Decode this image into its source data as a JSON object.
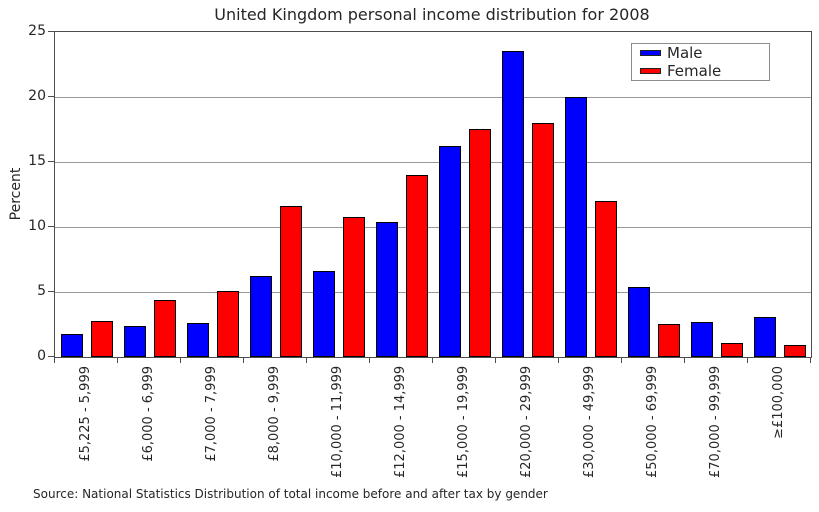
{
  "chart_data": {
    "type": "bar",
    "title": "United Kingdom personal income distribution for 2008",
    "ylabel": "Percent",
    "xlabel": "",
    "ylim": [
      0,
      25
    ],
    "yticks": [
      0,
      5,
      10,
      15,
      20,
      25
    ],
    "grid": "horizontal-only",
    "legend_position": "top-right-inside",
    "source_note": "Source: National Statistics Distribution of total income before and after tax by gender",
    "categories": [
      "£5,225 - 5,999",
      "£6,000 - 6,999",
      "£7,000 - 7,999",
      "£8,000 - 9,999",
      "£10,000 - 11,999",
      "£12,000 - 14,999",
      "£15,000 - 19,999",
      "£20,000 - 29,999",
      "£30,000 - 49,999",
      "£50,000 - 69,999",
      "£70,000 - 99,999",
      "≥£100,000"
    ],
    "series": [
      {
        "name": "Male",
        "color": "#0000ff",
        "values": [
          1.8,
          2.4,
          2.6,
          6.2,
          6.6,
          10.4,
          16.2,
          23.5,
          20.0,
          5.4,
          2.7,
          3.1
        ]
      },
      {
        "name": "Female",
        "color": "#ff0000",
        "values": [
          2.8,
          4.4,
          5.1,
          11.6,
          10.8,
          14.0,
          17.5,
          18.0,
          12.0,
          2.5,
          1.1,
          0.9
        ]
      }
    ]
  }
}
